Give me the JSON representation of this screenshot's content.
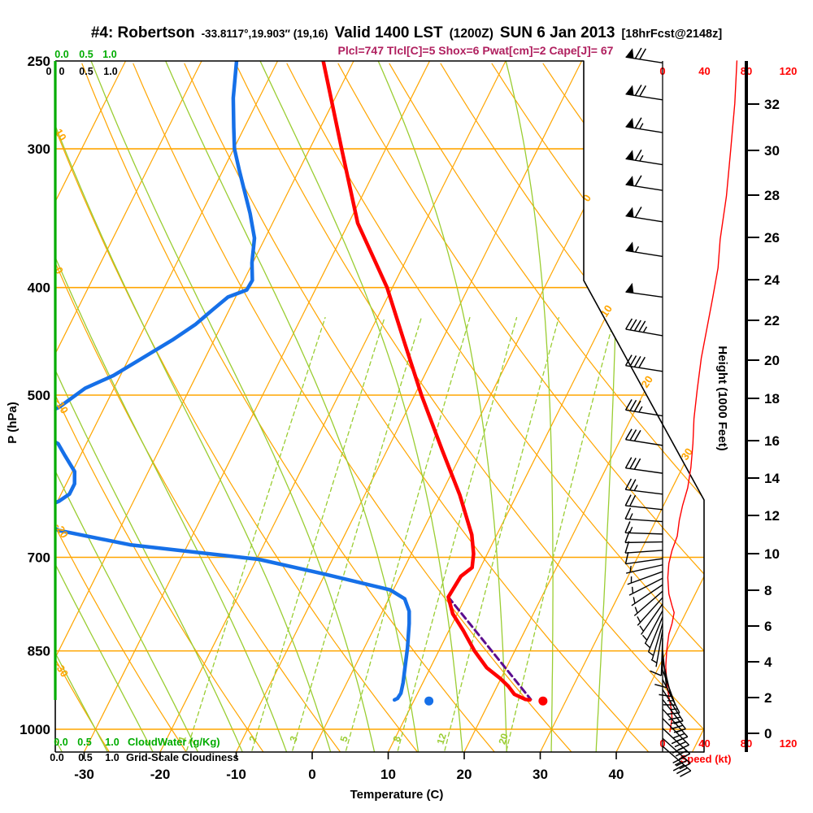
{
  "title": {
    "station": "#4: Robertson",
    "coords": "-33.8117°,19.903″ (19,16)",
    "valid": "Valid 1400 LST",
    "zulu": "(1200Z)",
    "date": "SUN 6 Jan 2013",
    "fcst": "[18hrFcst@2148z]"
  },
  "params_line": "Plcl=747 Tlcl[C]=5 Shox=6 Pwat[cm]=2 Cape[J]= 67",
  "axes": {
    "pressure": {
      "label": "P (hPa)",
      "ticks": [
        250,
        300,
        400,
        500,
        700,
        850,
        1000
      ]
    },
    "temperature": {
      "label": "Temperature (C)",
      "ticks": [
        -30,
        -20,
        -10,
        0,
        10,
        20,
        30,
        40
      ]
    },
    "height": {
      "label": "Height (1000 Feet)",
      "ticks": [
        0,
        2,
        4,
        6,
        8,
        10,
        12,
        14,
        16,
        18,
        20,
        22,
        24,
        26,
        28,
        30,
        32
      ]
    },
    "speed": {
      "label": "Speed (kt)",
      "ticks": [
        0,
        40,
        80,
        120
      ]
    },
    "cloud": {
      "top_green": [
        "0.0",
        "0.5",
        "1.0"
      ],
      "top_black": [
        "0",
        "0",
        "0.5",
        "1.0"
      ],
      "bottom_green": [
        "0.0",
        "0.5",
        "1.0"
      ],
      "bottom_green_label": "CloudWater (g/Kg)",
      "bottom_black": [
        "0.0",
        "0.5",
        "1.0"
      ],
      "bottom_black_label": "Grid-Scale Cloudiness"
    }
  },
  "grid": {
    "pressure_lines": [
      300,
      400,
      500,
      700,
      850,
      1000
    ],
    "isotherms": {
      "min": -80,
      "max": 50,
      "step": 10
    },
    "dry_adiabats": {
      "min": -30,
      "max": 120,
      "step": 10
    },
    "moist_adiabats": [
      -36,
      -30,
      -24,
      -18,
      -12,
      -6,
      0,
      6,
      12,
      18,
      24,
      30,
      36
    ],
    "mixing_ratios": [
      1,
      2,
      3,
      5,
      8,
      12,
      20
    ]
  },
  "chart_data": {
    "type": "line",
    "subtype": "skewt-logp-sounding",
    "pressure_range_hpa": [
      250,
      1048
    ],
    "temperature_profile_p_c": [
      [
        250,
        -44
      ],
      [
        300,
        -35.8
      ],
      [
        350,
        -28.8
      ],
      [
        400,
        -20.7
      ],
      [
        450,
        -14.6
      ],
      [
        500,
        -9.1
      ],
      [
        560,
        -2.8
      ],
      [
        615,
        2.5
      ],
      [
        668,
        6.7
      ],
      [
        695,
        8.2
      ],
      [
        715,
        8.9
      ],
      [
        728,
        8.0
      ],
      [
        760,
        7.7
      ],
      [
        787,
        9.4
      ],
      [
        815,
        11.9
      ],
      [
        850,
        14.7
      ],
      [
        880,
        17.4
      ],
      [
        900,
        19.9
      ],
      [
        915,
        21.5
      ],
      [
        930,
        22.8
      ],
      [
        940,
        24.6
      ],
      [
        941,
        25.2
      ]
    ],
    "dewpoint_profile_p_c": [
      [
        250,
        -55.4
      ],
      [
        270,
        -53.4
      ],
      [
        287,
        -51.4
      ],
      [
        300,
        -49.9
      ],
      [
        314,
        -47.8
      ],
      [
        343,
        -43.6
      ],
      [
        361,
        -41.4
      ],
      [
        380,
        -40.1
      ],
      [
        394,
        -38.9
      ],
      [
        402,
        -39.0
      ],
      [
        408,
        -41.0
      ],
      [
        418,
        -42.1
      ],
      [
        432,
        -43.5
      ],
      [
        446,
        -45.5
      ],
      [
        464,
        -48.4
      ],
      [
        480,
        -50.9
      ],
      [
        493,
        -53.8
      ],
      [
        513,
        -56.0
      ],
      [
        530,
        -60
      ],
      [
        553,
        -53.7
      ],
      [
        567,
        -52.0
      ],
      [
        586,
        -49.7
      ],
      [
        601,
        -48.9
      ],
      [
        614,
        -48.9
      ],
      [
        623,
        -49.8
      ],
      [
        641,
        -53
      ],
      [
        662,
        -47.9
      ],
      [
        682,
        -37.6
      ],
      [
        703,
        -19.7
      ],
      [
        725,
        -10.0
      ],
      [
        749,
        -0.4
      ],
      [
        763,
        2.1
      ],
      [
        783,
        3.5
      ],
      [
        803,
        4.3
      ],
      [
        845,
        5.7
      ],
      [
        878,
        6.6
      ],
      [
        908,
        7.4
      ],
      [
        928,
        7.8
      ],
      [
        938,
        7.7
      ],
      [
        941,
        7.4
      ]
    ],
    "parcel_path_p_c": [
      [
        760,
        7.7
      ],
      [
        940,
        25.3
      ]
    ],
    "surface_temp_dot_p_c": [
      943,
      27
    ],
    "surface_dewpoint_dot_p_c": [
      943,
      12
    ],
    "wind_speed_profile_p_kt": [
      [
        250,
        71
      ],
      [
        273,
        69
      ],
      [
        301,
        65
      ],
      [
        331,
        61
      ],
      [
        362,
        55
      ],
      [
        384,
        53
      ],
      [
        408,
        48
      ],
      [
        432,
        43
      ],
      [
        463,
        37
      ],
      [
        495,
        33
      ],
      [
        525,
        30
      ],
      [
        553,
        29
      ],
      [
        581,
        27
      ],
      [
        606,
        24
      ],
      [
        629,
        19
      ],
      [
        648,
        16
      ],
      [
        670,
        14
      ],
      [
        690,
        9
      ],
      [
        709,
        6
      ],
      [
        730,
        5
      ],
      [
        755,
        6
      ],
      [
        774,
        9
      ],
      [
        785,
        11
      ],
      [
        803,
        9
      ],
      [
        821,
        6
      ],
      [
        849,
        4
      ],
      [
        878,
        3
      ],
      [
        908,
        4
      ],
      [
        935,
        6
      ],
      [
        956,
        8
      ],
      [
        977,
        9
      ],
      [
        1005,
        7
      ]
    ],
    "wind_barbs_p_dir_kt": [
      [
        251,
        171,
        70
      ],
      [
        271,
        171,
        70
      ],
      [
        290,
        171,
        65
      ],
      [
        310,
        171,
        65
      ],
      [
        327,
        171,
        60
      ],
      [
        349,
        171,
        60
      ],
      [
        375,
        171,
        55
      ],
      [
        408,
        172,
        50
      ],
      [
        442,
        170,
        45
      ],
      [
        476,
        171,
        40
      ],
      [
        522,
        171,
        35
      ],
      [
        555,
        171,
        30
      ],
      [
        588,
        172,
        30
      ],
      [
        614,
        173,
        25
      ],
      [
        634,
        174,
        20
      ],
      [
        650,
        176,
        15
      ],
      [
        667,
        178,
        15
      ],
      [
        678,
        181,
        10
      ],
      [
        690,
        184,
        10
      ],
      [
        702,
        188,
        10
      ],
      [
        711,
        193,
        5
      ],
      [
        721,
        200,
        5
      ],
      [
        731,
        207,
        5
      ],
      [
        741,
        214,
        5
      ],
      [
        751,
        221,
        5
      ],
      [
        761,
        228,
        5
      ],
      [
        771,
        235,
        5
      ],
      [
        782,
        242,
        5
      ],
      [
        792,
        248,
        5
      ],
      [
        803,
        254,
        8
      ],
      [
        814,
        260,
        8
      ],
      [
        828,
        268,
        10
      ],
      [
        849,
        276,
        10
      ],
      [
        866,
        283,
        12
      ],
      [
        884,
        290,
        15
      ],
      [
        902,
        297,
        18
      ],
      [
        921,
        303,
        20
      ],
      [
        940,
        308,
        25
      ],
      [
        959,
        312,
        28
      ],
      [
        978,
        315,
        30
      ],
      [
        998,
        317,
        32
      ],
      [
        1019,
        318,
        33
      ],
      [
        1036,
        319,
        34
      ]
    ],
    "isotherm_labels_c": [
      0,
      10,
      20,
      30
    ],
    "dry_adiabat_labels_c": [
      10,
      0,
      -10,
      -20,
      -30
    ],
    "mixing_ratio_labels_gkg": [
      "1",
      "2",
      "3",
      "5",
      "8",
      "12",
      "20"
    ]
  },
  "colors": {
    "orange": "#FFA500",
    "green_light": "#9ACD32",
    "green_bright": "#00AC00",
    "blue": "#1670E8",
    "red": "#FF0000",
    "purple": "#5C0D8E",
    "magenta": "#B0205F",
    "black": "#000000"
  }
}
